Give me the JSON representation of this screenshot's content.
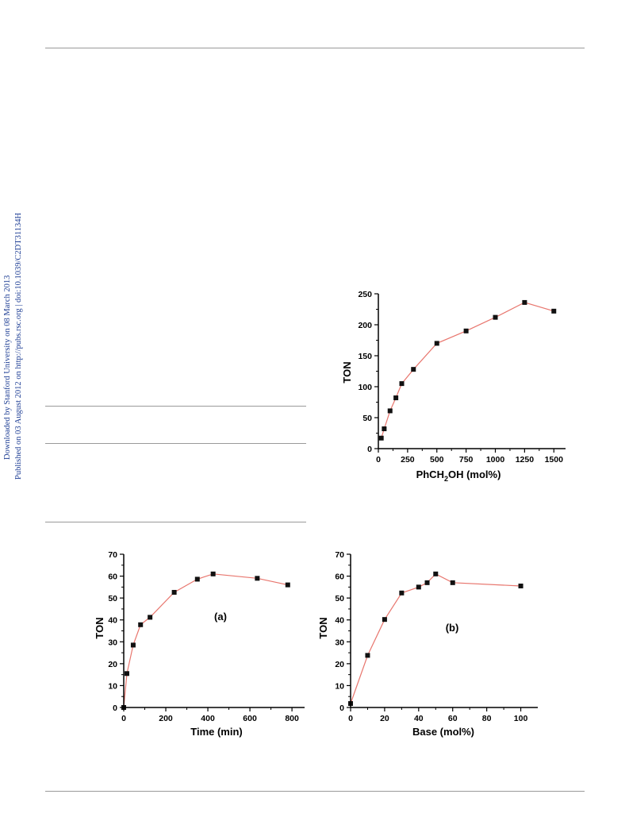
{
  "side_notes": {
    "line1": "Downloaded by Stanford University on 08 March 2013",
    "line2": "Published on 03 August 2012 on http://pubs.rsc.org | doi:10.1039/C2DT31134H"
  },
  "chart_data": [
    {
      "type": "line",
      "xlabel_main": "PhCH",
      "xlabel_sub": "2",
      "xlabel_tail": "OH (mol%)",
      "ylabel": "TON",
      "panel_label": "",
      "xlim": [
        0,
        1600
      ],
      "ylim": [
        0,
        250
      ],
      "xticks": [
        0,
        250,
        500,
        750,
        1000,
        1250,
        1500
      ],
      "yticks": [
        0,
        50,
        100,
        150,
        200,
        250
      ],
      "series": [
        {
          "x": [
            25,
            50,
            100,
            150,
            200,
            300,
            500,
            750,
            1000,
            1250,
            1500
          ],
          "y": [
            17,
            32,
            61,
            82,
            105,
            128,
            170,
            190,
            212,
            236,
            222
          ]
        }
      ],
      "line_color": "#e8766e",
      "marker_color": "#111111"
    },
    {
      "type": "line",
      "xlabel": "Time (min)",
      "ylabel": "TON",
      "panel_label": "(a)",
      "xlim": [
        0,
        860
      ],
      "ylim": [
        0,
        70
      ],
      "xticks": [
        0,
        200,
        400,
        600,
        800
      ],
      "yticks": [
        0,
        10,
        20,
        30,
        40,
        50,
        60,
        70
      ],
      "series": [
        {
          "x": [
            0,
            15,
            45,
            80,
            125,
            240,
            350,
            425,
            635,
            780
          ],
          "y": [
            0,
            15.5,
            28.5,
            37.8,
            41.2,
            52.6,
            58.6,
            61,
            59,
            56
          ]
        }
      ],
      "line_color": "#e8766e",
      "marker_color": "#111111"
    },
    {
      "type": "line",
      "xlabel": "Base (mol%)",
      "ylabel": "TON",
      "panel_label": "(b)",
      "xlim": [
        0,
        110
      ],
      "ylim": [
        0,
        70
      ],
      "xticks": [
        0,
        20,
        40,
        60,
        80,
        100
      ],
      "yticks": [
        0,
        10,
        20,
        30,
        40,
        50,
        60,
        70
      ],
      "series": [
        {
          "x": [
            0,
            10,
            20,
            30,
            40,
            45,
            50,
            60,
            100
          ],
          "y": [
            1.8,
            23.8,
            40.2,
            52.3,
            55,
            57,
            61,
            57,
            55.5
          ]
        }
      ],
      "line_color": "#e8766e",
      "marker_color": "#111111"
    }
  ]
}
